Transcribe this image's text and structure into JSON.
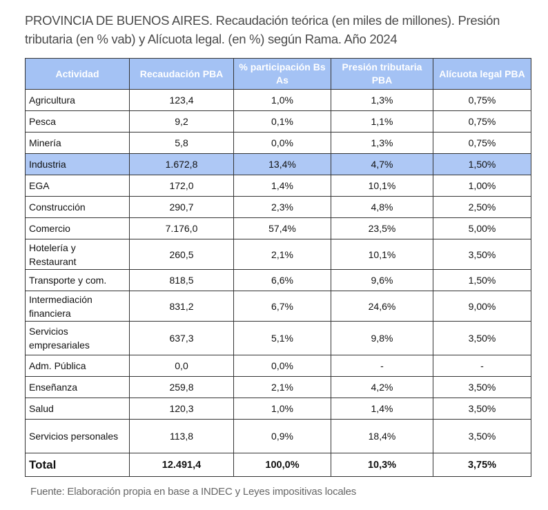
{
  "title": "PROVINCIA DE BUENOS AIRES. Recaudación teórica (en miles de millones). Presión tributaria (en % vab) y Alícuota legal. (en %) según Rama. Año 2024",
  "colors": {
    "header_bg": "#a4c2f4",
    "highlight_row_bg": "#aec8f5"
  },
  "table": {
    "headers": [
      "Actividad",
      "Recaudación PBA",
      "% participación Bs As",
      "Presión tributaria PBA",
      "Alícuota legal PBA"
    ],
    "rows": [
      [
        "Agricultura",
        "123,4",
        "1,0%",
        "1,3%",
        "0,75%"
      ],
      [
        "Pesca",
        "9,2",
        "0,1%",
        "1,1%",
        "0,75%"
      ],
      [
        "Minería",
        "5,8",
        "0,0%",
        "1,3%",
        "0,75%"
      ],
      [
        "Industria",
        "1.672,8",
        "13,4%",
        "4,7%",
        "1,50%"
      ],
      [
        "EGA",
        "172,0",
        "1,4%",
        "10,1%",
        "1,00%"
      ],
      [
        "Construcción",
        "290,7",
        "2,3%",
        "4,8%",
        "2,50%"
      ],
      [
        "Comercio",
        "7.176,0",
        "57,4%",
        "23,5%",
        "5,00%"
      ],
      [
        "Hotelería y Restaurant",
        "260,5",
        "2,1%",
        "10,1%",
        "3,50%"
      ],
      [
        "Transporte y com.",
        "818,5",
        "6,6%",
        "9,6%",
        "1,50%"
      ],
      [
        "Intermediación financiera",
        "831,2",
        "6,7%",
        "24,6%",
        "9,00%"
      ],
      [
        "Servicios empresariales",
        "637,3",
        "5,1%",
        "9,8%",
        "3,50%"
      ],
      [
        "Adm. Pública",
        "0,0",
        "0,0%",
        "-",
        "-"
      ],
      [
        "Enseñanza",
        "259,8",
        "2,1%",
        "4,2%",
        "3,50%"
      ],
      [
        "Salud",
        "120,3",
        "1,0%",
        "1,4%",
        "3,50%"
      ],
      [
        "Servicios personales",
        "113,8",
        "0,9%",
        "18,4%",
        "3,50%"
      ]
    ],
    "highlighted_row": "Industria",
    "total": [
      "Total",
      "12.491,4",
      "100,0%",
      "10,3%",
      "3,75%"
    ]
  },
  "source": "Fuente: Elaboración propia en base a INDEC y Leyes impositivas locales"
}
